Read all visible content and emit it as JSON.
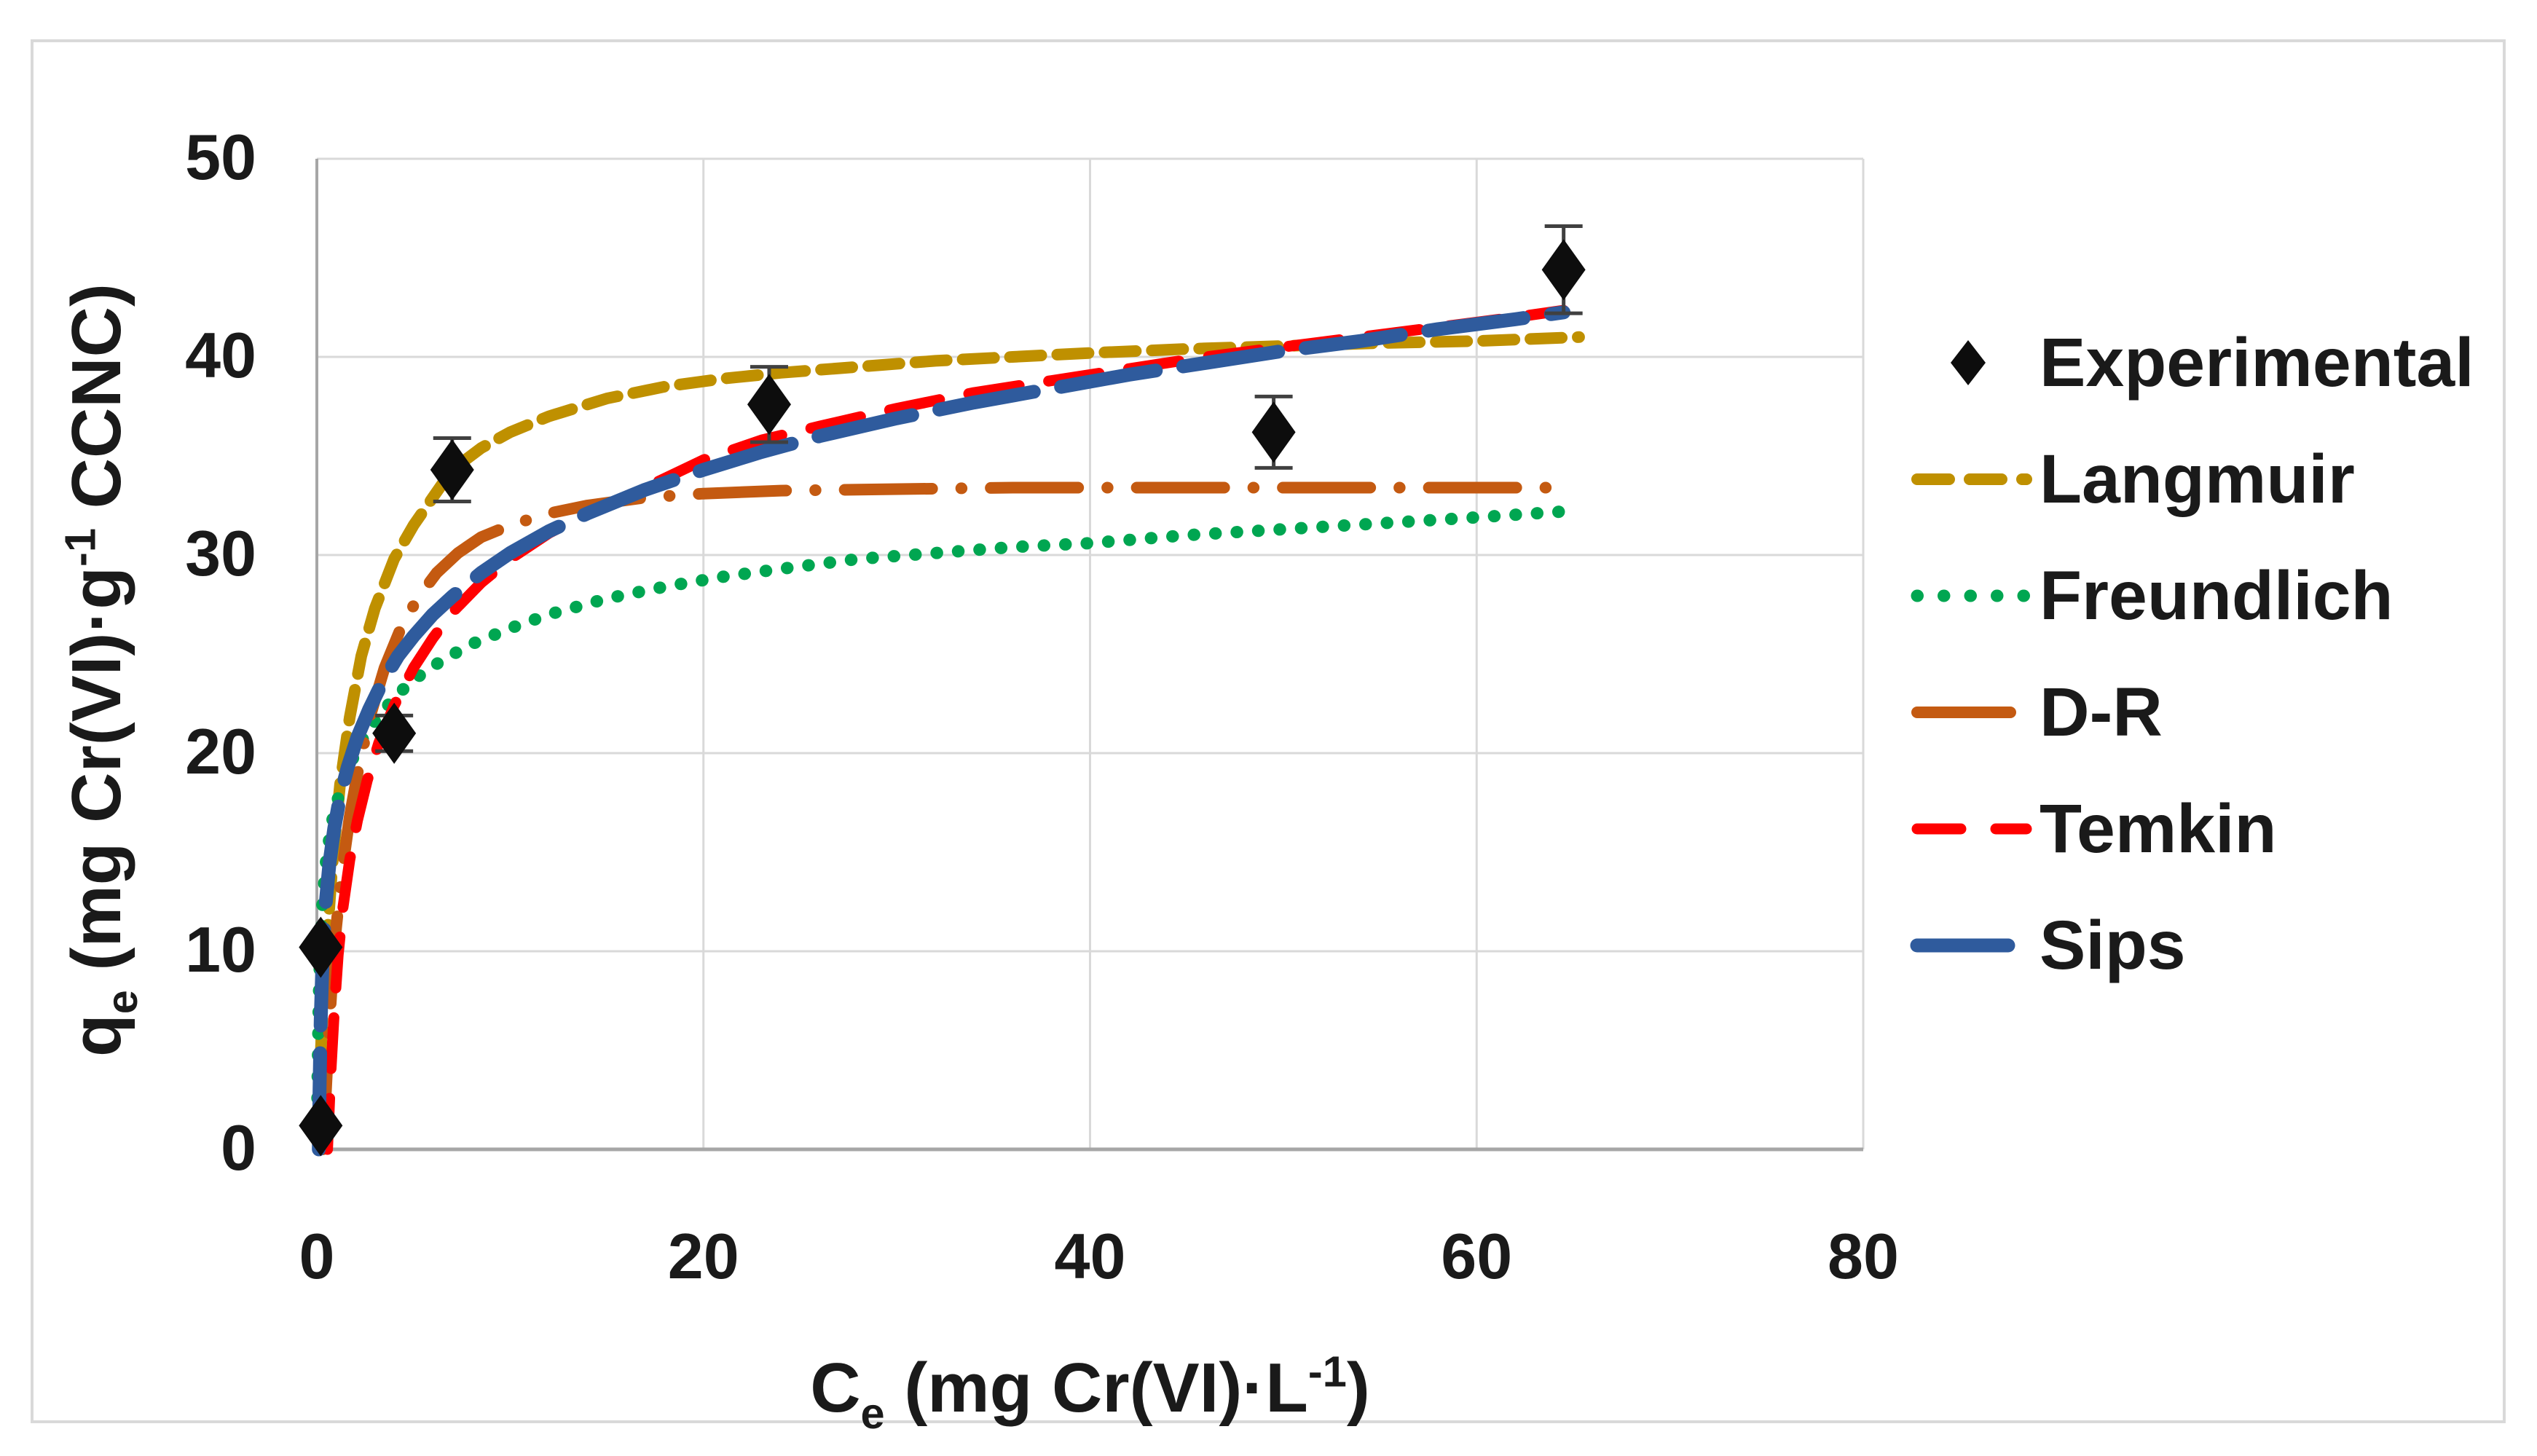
{
  "figure": {
    "background": "#ffffff",
    "border_color": "#d9d9d9"
  },
  "chart_data": {
    "type": "line",
    "title": "",
    "xlabel_tokens": [
      {
        "t": "C",
        "s": "n"
      },
      {
        "t": "e",
        "s": "sub"
      },
      {
        "t": " (mg Cr(VI)·L",
        "s": "n"
      },
      {
        "t": "-1",
        "s": "sup"
      },
      {
        "t": ")",
        "s": "n"
      }
    ],
    "ylabel_tokens": [
      {
        "t": "q",
        "s": "n"
      },
      {
        "t": "e",
        "s": "sub"
      },
      {
        "t": " (mg Cr(VI)·g",
        "s": "n"
      },
      {
        "t": "-1",
        "s": "sup"
      },
      {
        "t": " CCNC)",
        "s": "n"
      }
    ],
    "xlim": [
      0,
      80
    ],
    "ylim": [
      0,
      50
    ],
    "xticks": [
      0,
      20,
      40,
      60,
      80
    ],
    "yticks": [
      0,
      10,
      20,
      30,
      40,
      50
    ],
    "grid": true,
    "grid_color": "#d9d9d9",
    "axis_color": "#a6a6a6",
    "legend_position": "right",
    "experimental": {
      "name": "Experimental",
      "marker": "diamond",
      "color": "#0d0d0d",
      "error_color": "#404040",
      "points": [
        {
          "x": 0.2,
          "y": 1.2,
          "err": 0
        },
        {
          "x": 0.2,
          "y": 10.2,
          "err": 0
        },
        {
          "x": 4.0,
          "y": 21.0,
          "err": 0.9
        },
        {
          "x": 7.0,
          "y": 34.3,
          "err": 1.6
        },
        {
          "x": 23.4,
          "y": 37.6,
          "err": 1.9
        },
        {
          "x": 49.5,
          "y": 36.2,
          "err": 1.8
        },
        {
          "x": 64.5,
          "y": 44.4,
          "err": 2.2
        }
      ]
    },
    "series": [
      {
        "name": "Langmuir",
        "color": "#bf9000",
        "width": 16,
        "dash": "43 22",
        "x": [
          0.1,
          0.25,
          0.5,
          0.8,
          1.2,
          1.7,
          2.3,
          3,
          4,
          5,
          6,
          7,
          8.5,
          10,
          12,
          15,
          18,
          21,
          24,
          28,
          32,
          36,
          40,
          45,
          50,
          55,
          60,
          65.3
        ],
        "y": [
          2.6,
          5.9,
          10.3,
          14.3,
          18.4,
          21.8,
          24.9,
          27.3,
          29.8,
          31.5,
          32.9,
          34.3,
          35.4,
          36.2,
          37.0,
          37.9,
          38.5,
          38.9,
          39.2,
          39.5,
          39.8,
          40.0,
          40.2,
          40.4,
          40.55,
          40.7,
          40.8,
          41.0
        ]
      },
      {
        "name": "Freundlich",
        "color": "#00a651",
        "width": 17,
        "dash": "0.5 29",
        "x": [
          0.02,
          0.05,
          0.1,
          0.18,
          0.3,
          0.5,
          0.8,
          1.2,
          1.7,
          2.3,
          3,
          4,
          5,
          6.5,
          8,
          10,
          12,
          15,
          18,
          21,
          24,
          28,
          32,
          36,
          40,
          45,
          50,
          55,
          60,
          64.5
        ],
        "y": [
          1.5,
          4,
          7.5,
          10.3,
          12.6,
          14.8,
          16.6,
          18.1,
          19.4,
          20.6,
          21.6,
          22.8,
          23.7,
          24.7,
          25.5,
          26.3,
          27.0,
          27.8,
          28.4,
          28.9,
          29.3,
          29.8,
          30.1,
          30.4,
          30.6,
          31.0,
          31.3,
          31.6,
          31.9,
          32.2
        ]
      },
      {
        "name": "D-R",
        "color": "#c45a11",
        "width": 16,
        "dash": "120 40 0.5 40",
        "x": [
          0.3,
          0.45,
          0.6,
          0.8,
          1,
          1.3,
          1.7,
          2.2,
          2.8,
          3.5,
          4.3,
          5.2,
          6.2,
          7.3,
          8.5,
          10,
          12,
          14,
          17,
          20,
          24,
          28,
          32,
          36,
          40,
          45,
          50,
          55,
          60,
          64
        ],
        "y": [
          0,
          2.5,
          5.5,
          8.7,
          11.2,
          14,
          16.8,
          19.5,
          22,
          24.3,
          26.2,
          27.8,
          29.1,
          30.1,
          30.9,
          31.5,
          32.1,
          32.5,
          32.9,
          33.1,
          33.25,
          33.3,
          33.35,
          33.4,
          33.4,
          33.4,
          33.4,
          33.4,
          33.4,
          33.4
        ]
      },
      {
        "name": "Temkin",
        "color": "#ff0000",
        "width": 15,
        "dash": "70 41",
        "x": [
          0.55,
          0.7,
          0.9,
          1.1,
          1.35,
          1.7,
          2.1,
          2.6,
          3.2,
          4,
          5,
          6,
          7,
          8.5,
          10,
          12,
          14,
          17,
          20,
          23,
          26,
          30,
          34,
          38,
          42,
          46,
          50,
          54,
          58,
          62,
          64.5
        ],
        "y": [
          0,
          3.5,
          7,
          9.8,
          12.2,
          14.6,
          16.6,
          18.6,
          20.5,
          22.4,
          24.3,
          25.8,
          27.1,
          28.6,
          29.8,
          31.1,
          32.1,
          33.4,
          34.8,
          35.8,
          36.5,
          37.4,
          38.2,
          38.8,
          39.4,
          40.0,
          40.5,
          41.0,
          41.5,
          42.0,
          42.35
        ]
      },
      {
        "name": "Sips",
        "color": "#2f5b9d",
        "width": 19,
        "dash": "132 38",
        "x": [
          0.1,
          0.14,
          0.2,
          0.3,
          0.45,
          0.65,
          0.9,
          1.2,
          1.6,
          2.1,
          2.7,
          3.4,
          4.2,
          5,
          6,
          7,
          8.5,
          10,
          12,
          14,
          17,
          20,
          23,
          26,
          30,
          34,
          38,
          42,
          46,
          50,
          54,
          58,
          62,
          64.5
        ],
        "y": [
          0,
          3,
          6.5,
          9.8,
          12.3,
          14.4,
          16.2,
          17.8,
          19.3,
          20.8,
          22.2,
          23.6,
          24.9,
          25.9,
          27.0,
          27.9,
          29.1,
          30.1,
          31.2,
          32.1,
          33.3,
          34.3,
          35.2,
          36.0,
          36.9,
          37.7,
          38.4,
          39.1,
          39.7,
          40.3,
          40.8,
          41.4,
          41.9,
          42.25
        ]
      }
    ],
    "legend": [
      {
        "label": "Experimental",
        "marker": "diamond",
        "color": "#0d0d0d",
        "dash": "",
        "swatch_len": 0,
        "width": 0
      },
      {
        "label": "Langmuir",
        "marker": "line",
        "color": "#bf9000",
        "dash": "44 28",
        "swatch_len": 150,
        "width": 16
      },
      {
        "label": "Freundlich",
        "marker": "line",
        "color": "#00a651",
        "dash": "0.5 36",
        "swatch_len": 150,
        "width": 17
      },
      {
        "label": "D-R",
        "marker": "line",
        "color": "#c45a11",
        "dash": "",
        "swatch_len": 128,
        "width": 16
      },
      {
        "label": "Temkin",
        "marker": "line",
        "color": "#ff0000",
        "dash": "60 48",
        "swatch_len": 150,
        "width": 15
      },
      {
        "label": "Sips",
        "marker": "line",
        "color": "#2f5b9d",
        "dash": "",
        "swatch_len": 125,
        "width": 19
      }
    ]
  }
}
